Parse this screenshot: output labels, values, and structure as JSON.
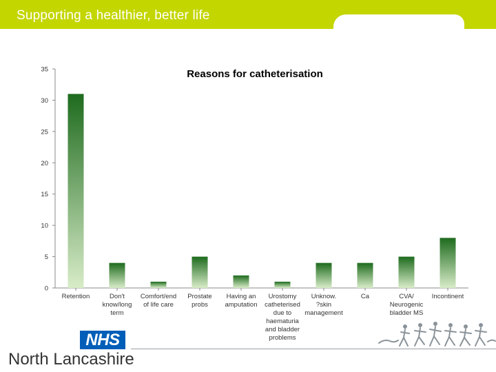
{
  "header": {
    "tagline": "Supporting a healthier, better life"
  },
  "footer": {
    "logo_text": "NHS",
    "org_name": "North Lancashire"
  },
  "colors": {
    "banner": "#c4d600",
    "bar_top": "#1e6b1e",
    "bar_bottom": "#d8ecc8",
    "nhs_blue": "#005eb8"
  },
  "icons": [
    "runners-silhouette-icon"
  ],
  "chart_data": {
    "type": "bar",
    "title": "Reasons for catheterisation",
    "xlabel": "",
    "ylabel": "",
    "ylim": [
      0,
      35
    ],
    "yticks": [
      0,
      5,
      10,
      15,
      20,
      25,
      30,
      35
    ],
    "grid": false,
    "legend": "none",
    "categories": [
      [
        "Retention"
      ],
      [
        "Don't",
        "know/long",
        "term"
      ],
      [
        "Comfort/end",
        "of life care"
      ],
      [
        "Prostate",
        "probs"
      ],
      [
        "Having an",
        "amputation"
      ],
      [
        "Urostomy",
        "catheterised",
        "due to",
        "haematuria",
        "and bladder",
        "problems"
      ],
      [
        "Unknow.",
        "?skin",
        "management"
      ],
      [
        "Ca"
      ],
      [
        "CVA/",
        "Neurogenic",
        "bladder MS"
      ],
      [
        "Incontinent"
      ]
    ],
    "values": [
      31,
      4,
      1,
      5,
      2,
      1,
      4,
      4,
      5,
      8
    ]
  }
}
